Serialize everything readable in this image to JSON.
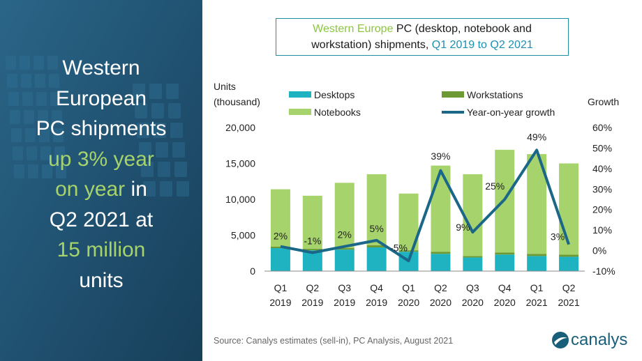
{
  "headline": {
    "line1": "Western",
    "line2": "European",
    "line3": "PC shipments",
    "line4_hl": "up 3% year",
    "line5_hl": "on year",
    "line5_rest": " in",
    "line6": "Q2 2021 at",
    "line7_hl": "15 million",
    "line8": "units"
  },
  "title": {
    "part1": "Western Europe",
    "part2": " PC (desktop, notebook and",
    "part3": "workstation) shipments, ",
    "part4": "Q1 2019 to Q2 2021"
  },
  "source": "Source:  Canalys estimates (sell-in), PC Analysis, August 2021",
  "logo": {
    "text": "canalys",
    "icon": "canalys-swoosh-icon"
  },
  "colors": {
    "panel": "#1d4f6e",
    "desktops": "#1fb3c2",
    "workstations": "#6e9a34",
    "notebooks": "#a6d36b",
    "growth": "#1a6788"
  },
  "chart_data": {
    "type": "bar",
    "stacked": true,
    "categories": [
      [
        "Q1",
        "2019"
      ],
      [
        "Q2",
        "2019"
      ],
      [
        "Q3",
        "2019"
      ],
      [
        "Q4",
        "2019"
      ],
      [
        "Q1",
        "2020"
      ],
      [
        "Q2",
        "2020"
      ],
      [
        "Q3",
        "2020"
      ],
      [
        "Q4",
        "2020"
      ],
      [
        "Q1",
        "2021"
      ],
      [
        "Q2",
        "2021"
      ]
    ],
    "series": [
      {
        "name": "Desktops",
        "type": "bar",
        "axis": "left",
        "values": [
          3200,
          2900,
          3000,
          3300,
          2700,
          2400,
          1900,
          2300,
          2100,
          2000
        ]
      },
      {
        "name": "Workstations",
        "type": "bar",
        "axis": "left",
        "values": [
          200,
          200,
          200,
          300,
          200,
          300,
          200,
          300,
          300,
          300
        ]
      },
      {
        "name": "Notebooks",
        "type": "bar",
        "axis": "left",
        "values": [
          8000,
          7400,
          9100,
          9900,
          7900,
          12000,
          11400,
          14300,
          13900,
          12700
        ]
      },
      {
        "name": "Year-on-year growth",
        "type": "line",
        "axis": "right",
        "values": [
          2,
          -1,
          2,
          5,
          -5,
          39,
          9,
          25,
          49,
          3
        ]
      }
    ],
    "growth_labels": [
      "2%",
      "-1%",
      "2%",
      "5%",
      "-5%",
      "39%",
      "9%",
      "25%",
      "49%",
      "3%"
    ],
    "ylabel_left": [
      "Units",
      "(thousand)"
    ],
    "ylabel_right": "Growth",
    "ylim_left": [
      0,
      20000
    ],
    "yticks_left": [
      "0",
      "5,000",
      "10,000",
      "15,000",
      "20,000"
    ],
    "ylim_right": [
      -10,
      60
    ],
    "yticks_right": [
      "-10%",
      "0%",
      "10%",
      "20%",
      "30%",
      "40%",
      "50%",
      "60%"
    ],
    "legend_position": "top",
    "grid": false
  }
}
